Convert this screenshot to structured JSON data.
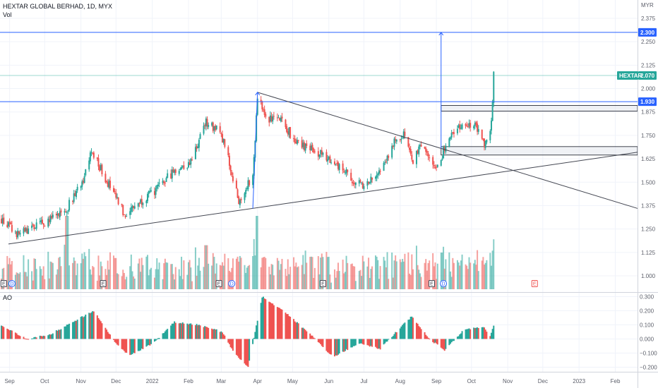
{
  "header": {
    "title": "HEXTAR GLOBAL BERHAD, 1D, MYX",
    "volume_label": "Vol",
    "indicator_label": "AO",
    "currency": "MYR"
  },
  "price_labels": {
    "target": "2.300",
    "symbol": "HEXTAR",
    "last": "2.070",
    "breakout": "1.930"
  },
  "colors": {
    "up": "#26a69a",
    "down": "#ef5350",
    "line_blue": "#2962ff",
    "trendline": "#434651",
    "grid": "#f0f3fa"
  },
  "chart_data": [
    {
      "type": "candlestick",
      "title": "HEXTAR GLOBAL BERHAD, 1D, MYX",
      "x_axis_ticks": [
        "Sep",
        "Oct",
        "Nov",
        "Dec",
        "2022",
        "Feb",
        "Mar",
        "Apr",
        "May",
        "Jun",
        "Jul",
        "Aug",
        "Sep",
        "Oct",
        "Nov",
        "Dec",
        "2023",
        "Feb"
      ],
      "y_ticks": [
        1.0,
        1.125,
        1.25,
        1.375,
        1.5,
        1.625,
        1.75,
        1.875,
        2.0,
        2.125,
        2.25,
        2.375
      ],
      "ylim": [
        0.95,
        2.42
      ],
      "grid": true,
      "price_path": [
        [
          "2021-08-25",
          1.3
        ],
        [
          "2021-09-08",
          1.22
        ],
        [
          "2021-09-22",
          1.26
        ],
        [
          "2021-10-06",
          1.3
        ],
        [
          "2021-10-20",
          1.36
        ],
        [
          "2021-11-03",
          1.52
        ],
        [
          "2021-11-10",
          1.66
        ],
        [
          "2021-11-24",
          1.5
        ],
        [
          "2021-12-08",
          1.33
        ],
        [
          "2021-12-22",
          1.4
        ],
        [
          "2022-01-05",
          1.46
        ],
        [
          "2022-01-19",
          1.56
        ],
        [
          "2022-02-02",
          1.6
        ],
        [
          "2022-02-16",
          1.82
        ],
        [
          "2022-03-01",
          1.76
        ],
        [
          "2022-03-10",
          1.55
        ],
        [
          "2022-03-16",
          1.4
        ],
        [
          "2022-03-28",
          1.53
        ],
        [
          "2022-04-01",
          1.96
        ],
        [
          "2022-04-08",
          1.84
        ],
        [
          "2022-04-22",
          1.82
        ],
        [
          "2022-05-06",
          1.7
        ],
        [
          "2022-05-20",
          1.67
        ],
        [
          "2022-06-03",
          1.62
        ],
        [
          "2022-06-17",
          1.54
        ],
        [
          "2022-07-01",
          1.47
        ],
        [
          "2022-07-15",
          1.58
        ],
        [
          "2022-07-29",
          1.73
        ],
        [
          "2022-08-05",
          1.76
        ],
        [
          "2022-08-12",
          1.6
        ],
        [
          "2022-08-19",
          1.7
        ],
        [
          "2022-09-02",
          1.58
        ],
        [
          "2022-09-09",
          1.7
        ],
        [
          "2022-09-19",
          1.8
        ],
        [
          "2022-10-03",
          1.82
        ],
        [
          "2022-10-12",
          1.7
        ],
        [
          "2022-10-17",
          1.78
        ],
        [
          "2022-10-19",
          1.92
        ],
        [
          "2022-10-20",
          2.07
        ]
      ],
      "last_price": 2.07,
      "horizontal_levels": [
        2.3,
        1.93
      ],
      "support_zones": [
        [
          1.88,
          1.91
        ],
        [
          1.645,
          1.69
        ]
      ],
      "trendlines": [
        {
          "from": [
            "2021-08-31",
            1.17
          ],
          "to": [
            "2023-02-20",
            1.66
          ]
        },
        {
          "from": [
            "2022-04-01",
            1.98
          ],
          "to": [
            "2023-02-20",
            1.36
          ]
        }
      ],
      "projections": [
        {
          "from": [
            "2022-03-28",
            1.36
          ],
          "to": [
            "2022-04-01",
            1.98
          ]
        },
        {
          "from": [
            "2022-09-05",
            1.68
          ],
          "to": [
            "2022-09-05",
            2.3
          ]
        }
      ],
      "events": [
        {
          "date": "2021-08-27",
          "kind": "E"
        },
        {
          "date": "2021-09-03",
          "kind": "D"
        },
        {
          "date": "2021-11-20",
          "kind": "E"
        },
        {
          "date": "2022-02-27",
          "kind": "E"
        },
        {
          "date": "2022-03-10",
          "kind": "D"
        },
        {
          "date": "2022-05-27",
          "kind": "E"
        },
        {
          "date": "2022-08-28",
          "kind": "E"
        },
        {
          "date": "2022-09-07",
          "kind": "D"
        },
        {
          "date": "2022-11-24",
          "kind": "E"
        }
      ]
    },
    {
      "type": "bar",
      "title": "Vol",
      "shape": "spiky daily volume, highest spikes near 2021-10-20 and 2022-04-01",
      "peaks": [
        [
          "2021-10-20",
          1.0
        ],
        [
          "2022-04-01",
          1.0
        ],
        [
          "2022-02-16",
          0.6
        ],
        [
          "2022-09-05",
          0.5
        ]
      ]
    },
    {
      "type": "bar",
      "title": "AO",
      "y_ticks": [
        -0.2,
        -0.1,
        0.0,
        0.1,
        0.2,
        0.3
      ],
      "ylim": [
        -0.23,
        0.32
      ],
      "path": [
        [
          "2021-08-25",
          0.1
        ],
        [
          "2021-09-15",
          0.0
        ],
        [
          "2021-10-05",
          0.03
        ],
        [
          "2021-10-25",
          0.12
        ],
        [
          "2021-11-12",
          0.2
        ],
        [
          "2021-11-30",
          -0.02
        ],
        [
          "2021-12-12",
          -0.12
        ],
        [
          "2022-01-02",
          -0.03
        ],
        [
          "2022-01-20",
          0.12
        ],
        [
          "2022-02-10",
          0.1
        ],
        [
          "2022-03-02",
          0.05
        ],
        [
          "2022-03-12",
          -0.1
        ],
        [
          "2022-03-24",
          -0.2
        ],
        [
          "2022-04-05",
          0.3
        ],
        [
          "2022-04-26",
          0.18
        ],
        [
          "2022-05-18",
          0.02
        ],
        [
          "2022-06-05",
          -0.13
        ],
        [
          "2022-06-26",
          -0.03
        ],
        [
          "2022-07-15",
          -0.07
        ],
        [
          "2022-08-01",
          0.08
        ],
        [
          "2022-08-11",
          0.16
        ],
        [
          "2022-08-26",
          0.0
        ],
        [
          "2022-09-08",
          -0.08
        ],
        [
          "2022-09-25",
          0.07
        ],
        [
          "2022-10-12",
          0.08
        ],
        [
          "2022-10-17",
          0.02
        ],
        [
          "2022-10-20",
          0.1
        ]
      ]
    }
  ]
}
